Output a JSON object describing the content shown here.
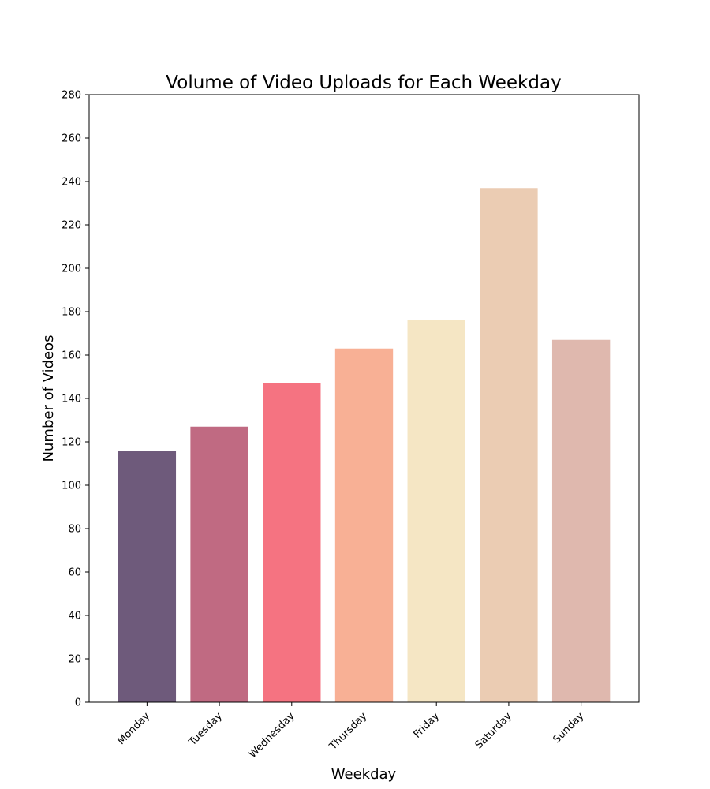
{
  "chart_data": {
    "type": "bar",
    "title": "Volume of Video Uploads for Each Weekday",
    "xlabel": "Weekday",
    "ylabel": "Number of Videos",
    "categories": [
      "Monday",
      "Tuesday",
      "Wednesday",
      "Thursday",
      "Friday",
      "Saturday",
      "Sunday"
    ],
    "values": [
      116,
      127,
      147,
      163,
      176,
      237,
      167
    ],
    "colors": [
      "#6e5a7b",
      "#c06a82",
      "#f57381",
      "#f8b095",
      "#f5e6c4",
      "#ebccb3",
      "#dfb8ae"
    ],
    "ylim": [
      0,
      280
    ],
    "yticks": [
      0,
      20,
      40,
      60,
      80,
      100,
      120,
      140,
      160,
      180,
      200,
      220,
      240,
      260,
      280
    ],
    "xtick_rotation": 45,
    "grid": false,
    "legend": "none"
  }
}
